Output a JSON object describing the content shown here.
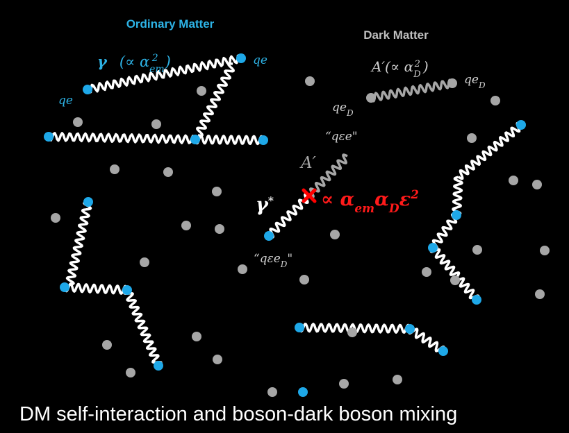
{
  "header": {
    "ordinary": "Ordinary Matter",
    "dark": "Dark Matter"
  },
  "labels": {
    "photon": [
      "γ",
      "(∝ α",
      "em",
      "2",
      ")"
    ],
    "qe_right": "qe",
    "qe_left": "qe",
    "dark_photon": [
      "A′(∝ α",
      "D",
      "2",
      ")"
    ],
    "qeD_right": [
      "qe",
      "D"
    ],
    "qeD_left": [
      "qe",
      "D"
    ],
    "mix_dark": "“qεe\"",
    "A_prime": "A′",
    "gamma_star": [
      "γ",
      "*"
    ],
    "mixing": [
      "∝ α",
      "em",
      "α",
      "D",
      "ε",
      "2"
    ],
    "mix_ordinary": [
      "“qεe",
      "D",
      "\""
    ]
  },
  "caption": "DM self-interaction and boson-dark boson mixing"
}
